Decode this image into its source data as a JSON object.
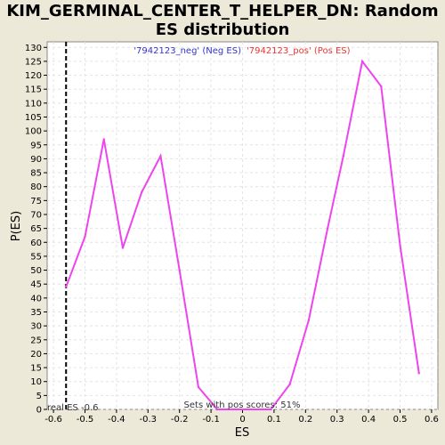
{
  "chart_data": {
    "type": "line",
    "title": "KIM_GERMINAL_CENTER_T_HELPER_DN: Random ES distribution",
    "xlabel": "ES",
    "ylabel": "P(ES)",
    "xlim": [
      -0.62,
      0.62
    ],
    "ylim": [
      0,
      132
    ],
    "x_ticks": [
      -0.6,
      -0.5,
      -0.4,
      -0.3,
      -0.2,
      -0.1,
      0,
      0.1,
      0.2,
      0.3,
      0.4,
      0.5,
      0.6
    ],
    "x_tick_labels": [
      "-0.6",
      "-0.5",
      "-0.4",
      "-0.3",
      "-0.2",
      "-0.1",
      "0",
      "0.1",
      "0.2",
      "0.3",
      "0.4",
      "0.5",
      "0.6"
    ],
    "y_ticks": [
      0,
      5,
      10,
      15,
      20,
      25,
      30,
      35,
      40,
      45,
      50,
      55,
      60,
      65,
      70,
      75,
      80,
      85,
      90,
      95,
      100,
      105,
      110,
      115,
      120,
      125,
      130
    ],
    "grid": true,
    "series": [
      {
        "color": "#EE44EE",
        "x": [
          -0.56,
          -0.5,
          -0.44,
          -0.38,
          -0.32,
          -0.26,
          -0.2,
          -0.14,
          -0.08,
          0.09,
          0.15,
          0.21,
          0.27,
          0.32,
          0.38,
          0.44,
          0.5,
          0.56
        ],
        "y": [
          44,
          62,
          97,
          58,
          78,
          91,
          50,
          8,
          0,
          0,
          9,
          32,
          65,
          91,
          125,
          116,
          59,
          13
        ]
      }
    ],
    "real_es": {
      "x": -0.56,
      "label": "real ES -0.6"
    },
    "legend": {
      "neg_label": "'7942123_neg' (Neg ES)",
      "neg_color": "#3333CC",
      "pos_label": "'7942123_pos' (Pos ES)",
      "pos_color": "#EE3333"
    },
    "annotation": "Sets with pos scores: 51%"
  }
}
